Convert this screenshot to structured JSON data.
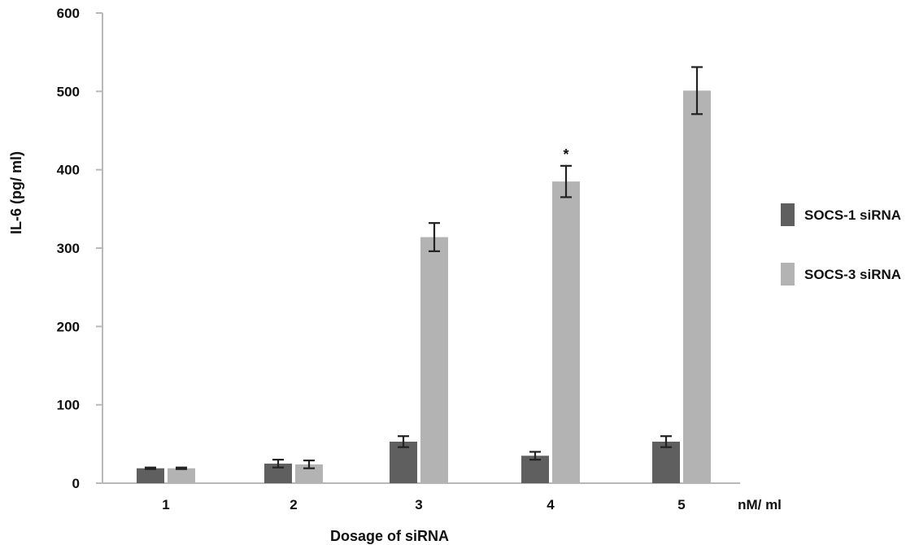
{
  "chart_data": {
    "type": "bar",
    "categories": [
      "1",
      "2",
      "3",
      "4",
      "5"
    ],
    "xlabel": "Dosage of siRNA",
    "x_unit": "nM/ ml",
    "ylabel": "IL-6  (pg/ ml)",
    "ylim": [
      0,
      600
    ],
    "yticks": [
      0,
      100,
      200,
      300,
      400,
      500,
      600
    ],
    "grid": false,
    "legend_position": "right",
    "series": [
      {
        "name": "SOCS-1 siRNA",
        "color": "#5f5f5f",
        "values": [
          19,
          25,
          53,
          35,
          53
        ],
        "errors": [
          1,
          5,
          7,
          5,
          7
        ]
      },
      {
        "name": "SOCS-3 siRNA",
        "color": "#b3b3b3",
        "values": [
          19,
          24,
          314,
          385,
          501
        ],
        "errors": [
          1,
          5,
          18,
          20,
          30
        ]
      }
    ],
    "annotations": [
      {
        "category": "4",
        "series": "SOCS-3 siRNA",
        "text": "*"
      }
    ]
  }
}
